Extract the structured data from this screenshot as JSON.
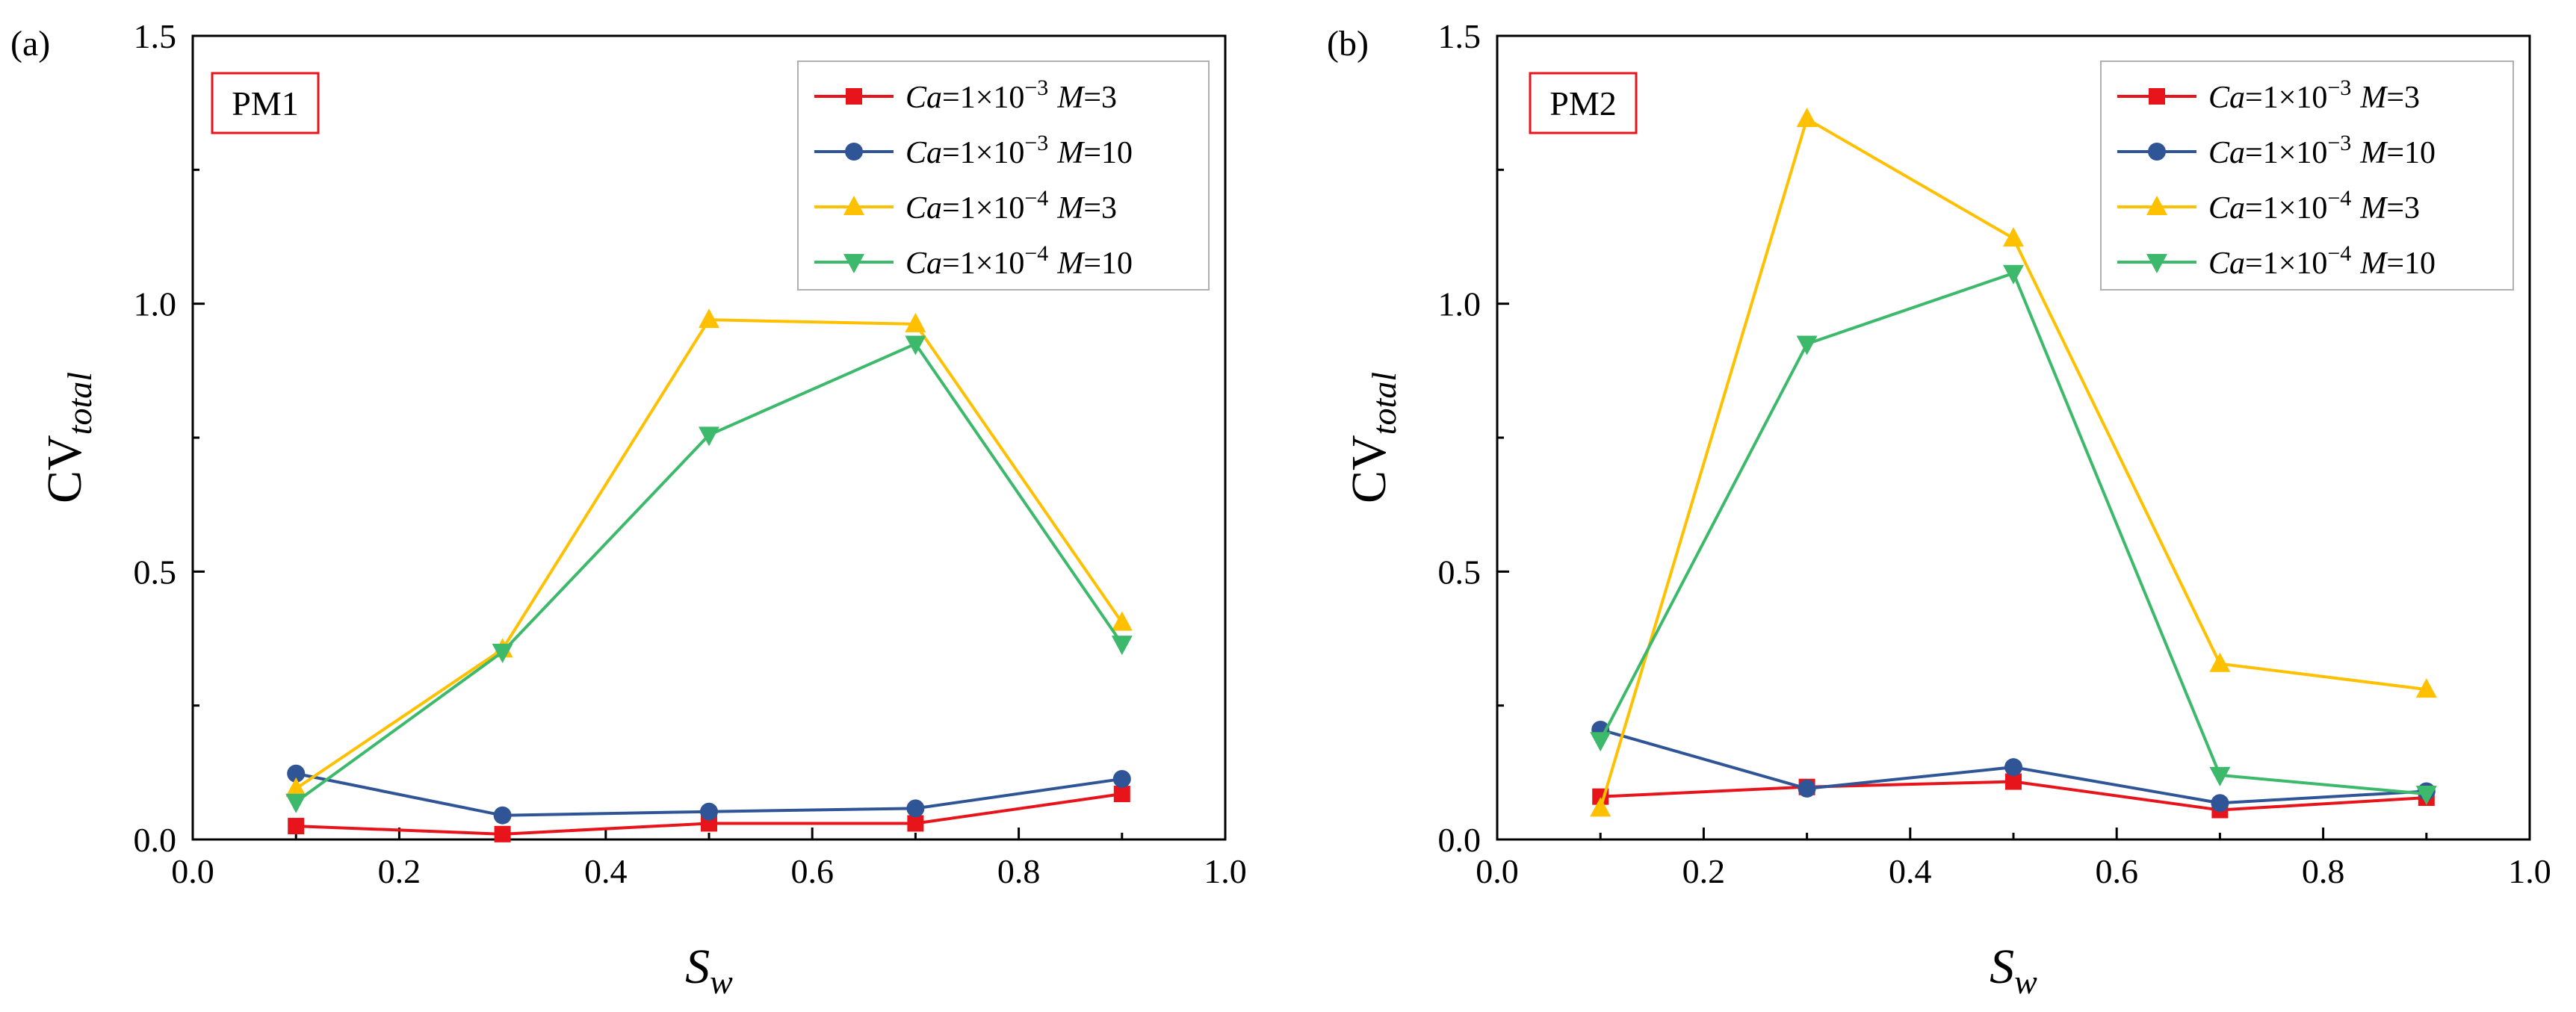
{
  "chart_data": [
    {
      "panel_label": "(a)",
      "tag": "PM1",
      "type": "line",
      "ylabel": {
        "main": "CV",
        "sub": "total"
      },
      "xlabel": {
        "main": "S",
        "sub": "w"
      },
      "xlim": [
        0.0,
        1.0
      ],
      "ylim": [
        0.0,
        1.5
      ],
      "xticks": [
        "0.0",
        "0.2",
        "0.4",
        "0.6",
        "0.8",
        "1.0"
      ],
      "yticks": [
        "0.0",
        "0.5",
        "1.0",
        "1.5"
      ],
      "grid": false,
      "legend_position": "top-right",
      "x": [
        0.1,
        0.3,
        0.5,
        0.7,
        0.9
      ],
      "series": [
        {
          "name": {
            "ca": "Ca",
            "eq": "=1×10",
            "exp": "−3",
            "m": "M",
            "mval": "=3"
          },
          "color": "#e8141b",
          "marker": "square",
          "values": [
            0.025,
            0.01,
            0.03,
            0.03,
            0.085
          ]
        },
        {
          "name": {
            "ca": "Ca",
            "eq": "=1×10",
            "exp": "−3",
            "m": "M",
            "mval": "=10"
          },
          "color": "#2f5597",
          "marker": "circle",
          "values": [
            0.123,
            0.045,
            0.052,
            0.058,
            0.113
          ]
        },
        {
          "name": {
            "ca": "Ca",
            "eq": "=1×10",
            "exp": "−4",
            "m": "M",
            "mval": "=3"
          },
          "color": "#ffc000",
          "marker": "triangle-up",
          "values": [
            0.095,
            0.355,
            0.97,
            0.962,
            0.405
          ]
        },
        {
          "name": {
            "ca": "Ca",
            "eq": "=1×10",
            "exp": "−4",
            "m": "M",
            "mval": "=10"
          },
          "color": "#3cb96b",
          "marker": "triangle-down",
          "values": [
            0.07,
            0.35,
            0.755,
            0.925,
            0.365
          ]
        }
      ]
    },
    {
      "panel_label": "(b)",
      "tag": "PM2",
      "type": "line",
      "ylabel": {
        "main": "CV",
        "sub": "total"
      },
      "xlabel": {
        "main": "S",
        "sub": "w"
      },
      "xlim": [
        0.0,
        1.0
      ],
      "ylim": [
        0.0,
        1.5
      ],
      "xticks": [
        "0.0",
        "0.2",
        "0.4",
        "0.6",
        "0.8",
        "1.0"
      ],
      "yticks": [
        "0.0",
        "0.5",
        "1.0",
        "1.5"
      ],
      "grid": false,
      "legend_position": "top-right",
      "x": [
        0.1,
        0.3,
        0.5,
        0.7,
        0.9
      ],
      "series": [
        {
          "name": {
            "ca": "Ca",
            "eq": "=1×10",
            "exp": "−3",
            "m": "M",
            "mval": "=3"
          },
          "color": "#e8141b",
          "marker": "square",
          "values": [
            0.08,
            0.098,
            0.108,
            0.055,
            0.078
          ]
        },
        {
          "name": {
            "ca": "Ca",
            "eq": "=1×10",
            "exp": "−3",
            "m": "M",
            "mval": "=10"
          },
          "color": "#2f5597",
          "marker": "circle",
          "values": [
            0.205,
            0.095,
            0.135,
            0.068,
            0.09
          ]
        },
        {
          "name": {
            "ca": "Ca",
            "eq": "=1×10",
            "exp": "−4",
            "m": "M",
            "mval": "=3"
          },
          "color": "#ffc000",
          "marker": "triangle-up",
          "values": [
            0.058,
            1.345,
            1.122,
            0.328,
            0.28
          ]
        },
        {
          "name": {
            "ca": "Ca",
            "eq": "=1×10",
            "exp": "−4",
            "m": "M",
            "mval": "=10"
          },
          "color": "#3cb96b",
          "marker": "triangle-down",
          "values": [
            0.185,
            0.925,
            1.057,
            0.12,
            0.085
          ]
        }
      ]
    }
  ]
}
